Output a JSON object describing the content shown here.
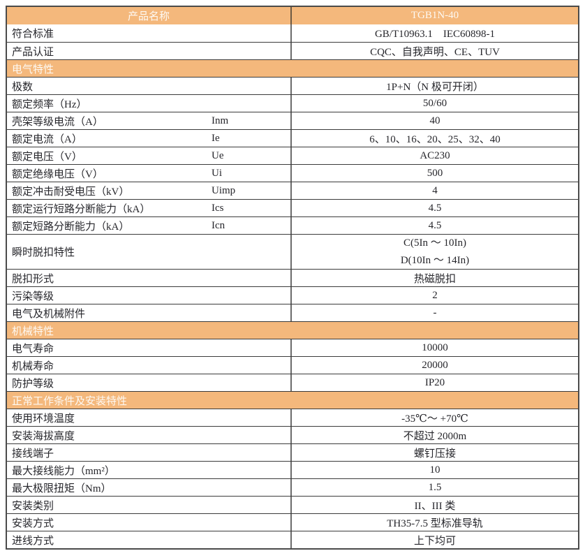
{
  "colors": {
    "accent_orange": "#f4b87c",
    "header_text": "#ffffff",
    "body_text": "#26262b",
    "border_dark": "#3b3b3b",
    "divider_gray": "#6b6b6b"
  },
  "header_row": {
    "label": "产品名称",
    "value": "TGB1N-40"
  },
  "sections": [
    {
      "title": "",
      "rows": [
        {
          "label": "符合标准",
          "symbol": "",
          "value": "GB/T10963.1　IEC60898-1"
        },
        {
          "label": "产品认证",
          "symbol": "",
          "value": "CQC、自我声明、CE、TUV"
        }
      ]
    },
    {
      "title": "电气特性",
      "rows": [
        {
          "label": "极数",
          "symbol": "",
          "value": "1P+N（N 极可开闭）"
        },
        {
          "label": "额定频率（Hz）",
          "symbol": "",
          "value": "50/60"
        },
        {
          "label": "壳架等级电流（A）",
          "symbol": "Inm",
          "value": "40"
        },
        {
          "label": "额定电流（A）",
          "symbol": "Ie",
          "value": "6、10、16、20、25、32、40"
        },
        {
          "label": "额定电压（V）",
          "symbol": "Ue",
          "value": "AC230"
        },
        {
          "label": "额定绝缘电压（V）",
          "symbol": "Ui",
          "value": "500"
        },
        {
          "label": "额定冲击耐受电压（kV）",
          "symbol": "Uimp",
          "value": "4"
        },
        {
          "label": "额定运行短路分断能力（kA）",
          "symbol": "Ics",
          "value": "4.5"
        },
        {
          "label": "额定短路分断能力（kA）",
          "symbol": "Icn",
          "value": "4.5"
        },
        {
          "label": "瞬时脱扣特性",
          "symbol": "",
          "value_lines": [
            "C(5In ～ 10In)",
            "D(10In ～ 14In)"
          ]
        },
        {
          "label": "脱扣形式",
          "symbol": "",
          "value": "热磁脱扣"
        },
        {
          "label": "污染等级",
          "symbol": "",
          "value": "2"
        },
        {
          "label": "电气及机械附件",
          "symbol": "",
          "value": "-"
        }
      ]
    },
    {
      "title": "机械特性",
      "rows": [
        {
          "label": "电气寿命",
          "symbol": "",
          "value": "10000"
        },
        {
          "label": "机械寿命",
          "symbol": "",
          "value": "20000"
        },
        {
          "label": "防护等级",
          "symbol": "",
          "value": "IP20"
        }
      ]
    },
    {
      "title": "正常工作条件及安装特性",
      "rows": [
        {
          "label": "使用环境温度",
          "symbol": "",
          "value": "-35℃～ +70℃"
        },
        {
          "label": "安装海拔高度",
          "symbol": "",
          "value": "不超过 2000m"
        },
        {
          "label": "接线端子",
          "symbol": "",
          "value": "螺钉压接"
        },
        {
          "label": "最大接线能力（mm²）",
          "symbol": "",
          "value": "10"
        },
        {
          "label": "最大极限扭矩（Nm）",
          "symbol": "",
          "value": "1.5"
        },
        {
          "label": "安装类别",
          "symbol": "",
          "value": "II、III 类"
        },
        {
          "label": "安装方式",
          "symbol": "",
          "value": "TH35-7.5 型标准导轨"
        },
        {
          "label": "进线方式",
          "symbol": "",
          "value": "上下均可"
        }
      ]
    }
  ]
}
